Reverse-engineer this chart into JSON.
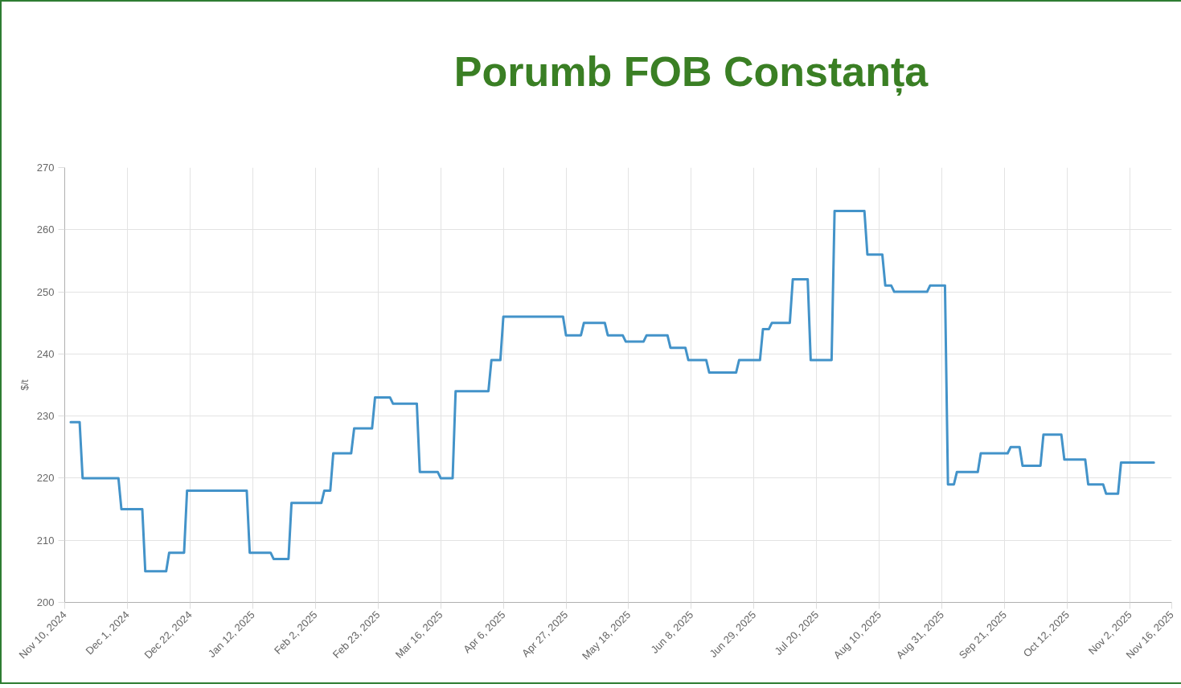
{
  "chart_data": {
    "type": "line",
    "title": "Porumb FOB Constanța",
    "ylabel": "$/t",
    "x": [
      "2024-11-12",
      "2024-11-15",
      "2024-11-16",
      "2024-11-28",
      "2024-11-29",
      "2024-12-06",
      "2024-12-07",
      "2024-12-14",
      "2024-12-15",
      "2024-12-20",
      "2024-12-21",
      "2025-01-10",
      "2025-01-11",
      "2025-01-18",
      "2025-01-19",
      "2025-01-24",
      "2025-01-25",
      "2025-02-04",
      "2025-02-05",
      "2025-02-07",
      "2025-02-08",
      "2025-02-14",
      "2025-02-15",
      "2025-02-21",
      "2025-02-22",
      "2025-02-27",
      "2025-02-28",
      "2025-03-08",
      "2025-03-09",
      "2025-03-15",
      "2025-03-16",
      "2025-03-20",
      "2025-03-21",
      "2025-04-01",
      "2025-04-02",
      "2025-04-05",
      "2025-04-06",
      "2025-04-26",
      "2025-04-27",
      "2025-05-02",
      "2025-05-03",
      "2025-05-10",
      "2025-05-11",
      "2025-05-16",
      "2025-05-17",
      "2025-05-23",
      "2025-05-24",
      "2025-05-31",
      "2025-06-01",
      "2025-06-06",
      "2025-06-07",
      "2025-06-13",
      "2025-06-14",
      "2025-06-23",
      "2025-06-24",
      "2025-07-01",
      "2025-07-02",
      "2025-07-04",
      "2025-07-05",
      "2025-07-11",
      "2025-07-12",
      "2025-07-17",
      "2025-07-18",
      "2025-07-25",
      "2025-07-26",
      "2025-08-05",
      "2025-08-06",
      "2025-08-11",
      "2025-08-12",
      "2025-08-14",
      "2025-08-15",
      "2025-08-26",
      "2025-08-27",
      "2025-09-01",
      "2025-09-02",
      "2025-09-04",
      "2025-09-05",
      "2025-09-12",
      "2025-09-13",
      "2025-09-22",
      "2025-09-23",
      "2025-09-26",
      "2025-09-27",
      "2025-10-03",
      "2025-10-04",
      "2025-10-10",
      "2025-10-11",
      "2025-10-18",
      "2025-10-19",
      "2025-10-24",
      "2025-10-25",
      "2025-10-29",
      "2025-10-30",
      "2025-11-10"
    ],
    "values": [
      229,
      229,
      220,
      220,
      215,
      215,
      205,
      205,
      208,
      208,
      218,
      218,
      208,
      208,
      207,
      207,
      216,
      216,
      218,
      218,
      224,
      224,
      228,
      228,
      233,
      233,
      232,
      232,
      221,
      221,
      220,
      220,
      234,
      234,
      239,
      239,
      246,
      246,
      243,
      243,
      245,
      245,
      243,
      243,
      242,
      242,
      243,
      243,
      241,
      241,
      239,
      239,
      237,
      237,
      239,
      239,
      244,
      244,
      245,
      245,
      252,
      252,
      239,
      239,
      263,
      263,
      256,
      256,
      251,
      251,
      250,
      250,
      251,
      251,
      219,
      219,
      221,
      221,
      224,
      224,
      225,
      225,
      222,
      222,
      227,
      227,
      223,
      223,
      219,
      219,
      217.5,
      217.5,
      222.5,
      222.5
    ],
    "color": "#4393c9",
    "xlim": [
      "2024-11-10",
      "2025-11-16"
    ],
    "xticks": [
      {
        "value": "2024-11-10",
        "label": "Nov 10, 2024"
      },
      {
        "value": "2024-12-01",
        "label": "Dec 1, 2024"
      },
      {
        "value": "2024-12-22",
        "label": "Dec 22, 2024"
      },
      {
        "value": "2025-01-12",
        "label": "Jan 12, 2025"
      },
      {
        "value": "2025-02-02",
        "label": "Feb 2, 2025"
      },
      {
        "value": "2025-02-23",
        "label": "Feb 23, 2025"
      },
      {
        "value": "2025-03-16",
        "label": "Mar 16, 2025"
      },
      {
        "value": "2025-04-06",
        "label": "Apr 6, 2025"
      },
      {
        "value": "2025-04-27",
        "label": "Apr 27, 2025"
      },
      {
        "value": "2025-05-18",
        "label": "May 18, 2025"
      },
      {
        "value": "2025-06-08",
        "label": "Jun 8, 2025"
      },
      {
        "value": "2025-06-29",
        "label": "Jun 29, 2025"
      },
      {
        "value": "2025-07-20",
        "label": "Jul 20, 2025"
      },
      {
        "value": "2025-08-10",
        "label": "Aug 10, 2025"
      },
      {
        "value": "2025-08-31",
        "label": "Aug 31, 2025"
      },
      {
        "value": "2025-09-21",
        "label": "Sep 21, 2025"
      },
      {
        "value": "2025-10-12",
        "label": "Oct 12, 2025"
      },
      {
        "value": "2025-11-02",
        "label": "Nov 2, 2025"
      },
      {
        "value": "2025-11-16",
        "label": "Nov 16, 2025"
      }
    ],
    "ylim": [
      200,
      270
    ],
    "yticks": [
      200,
      210,
      220,
      230,
      240,
      250,
      260,
      270
    ],
    "grid": true
  }
}
